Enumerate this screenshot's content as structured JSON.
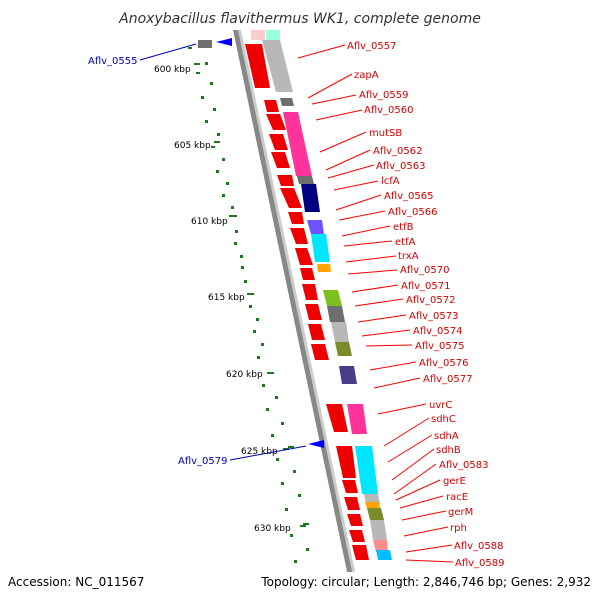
{
  "title": "Anoxybacillus flavithermus WK1, complete genome",
  "footer": {
    "accession": "Accession: NC_011567",
    "topology": "Topology: circular; Length: 2,846,746 bp; Genes: 2,932"
  },
  "kbp_labels": [
    "600 kbp",
    "605 kbp",
    "610 kbp",
    "615 kbp",
    "620 kbp",
    "625 kbp",
    "630 kbp"
  ],
  "right_labels": [
    "Aflv_0557",
    "zapA",
    "Aflv_0559",
    "Aflv_0560",
    "mutSB",
    "Aflv_0562",
    "Aflv_0563",
    "lcfA",
    "Aflv_0565",
    "Aflv_0566",
    "etfB",
    "etfA",
    "trxA",
    "Aflv_0570",
    "Aflv_0571",
    "Aflv_0572",
    "Aflv_0573",
    "Aflv_0574",
    "Aflv_0575",
    "Aflv_0576",
    "Aflv_0577",
    "uvrC",
    "sdhC",
    "sdhA",
    "sdhB",
    "Aflv_0583",
    "gerE",
    "racE",
    "gerM",
    "rph",
    "Aflv_0588",
    "Aflv_0589"
  ],
  "left_labels": [
    "Aflv_0555",
    "Aflv_0579"
  ],
  "colors": {
    "cds": "#ff0000",
    "backbone": "#999999",
    "label_right": "#d40000",
    "label_left": "#0000b4",
    "gc_dots": "#006400"
  }
}
